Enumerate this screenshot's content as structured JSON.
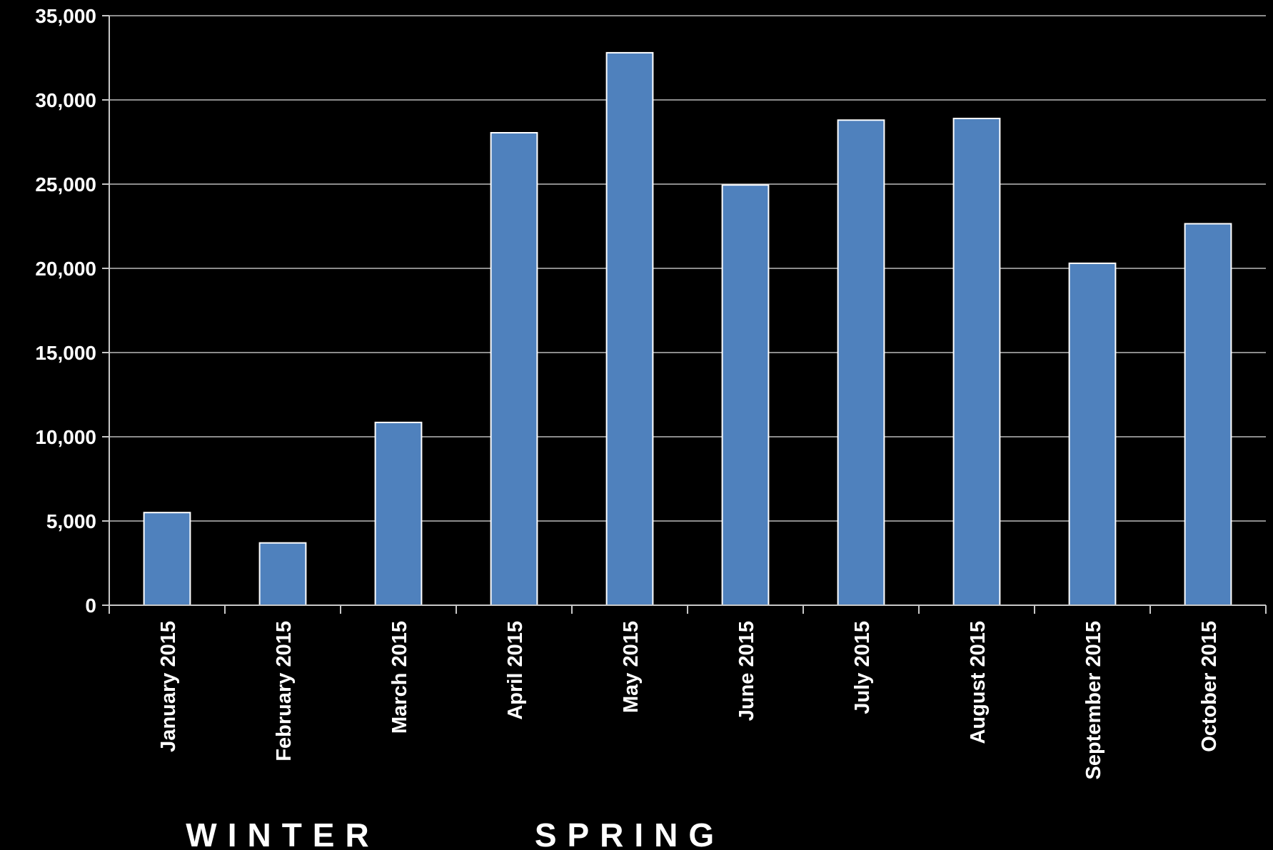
{
  "chart_data": {
    "type": "bar",
    "title": "",
    "xlabel": "",
    "ylabel": "",
    "categories": [
      "January 2015",
      "February 2015",
      "March 2015",
      "April 2015",
      "May 2015",
      "June 2015",
      "July 2015",
      "August 2015",
      "September 2015",
      "October 2015"
    ],
    "values": [
      5500,
      3700,
      10850,
      28050,
      32800,
      24950,
      28800,
      28900,
      20300,
      22650
    ],
    "ylim": [
      0,
      35000
    ],
    "yticks": [
      {
        "value": 0,
        "label": "0"
      },
      {
        "value": 5000,
        "label": "5,000"
      },
      {
        "value": 10000,
        "label": "10,000"
      },
      {
        "value": 15000,
        "label": "15,000"
      },
      {
        "value": 20000,
        "label": "20,000"
      },
      {
        "value": 25000,
        "label": "25,000"
      },
      {
        "value": 30000,
        "label": "30,000"
      },
      {
        "value": 35000,
        "label": "35,000"
      }
    ],
    "grid": true,
    "legend": "none",
    "annotations": [
      {
        "text": "WINTER",
        "near_category": "February 2015"
      },
      {
        "text": "SPRING",
        "near_category": "May 2015"
      }
    ],
    "colors": {
      "background": "#000000",
      "bar": "#4f81bd",
      "bar_border": "#ffffff",
      "grid": "#8c8c8c",
      "axis": "#c8c8c8",
      "text": "#ffffff"
    }
  }
}
